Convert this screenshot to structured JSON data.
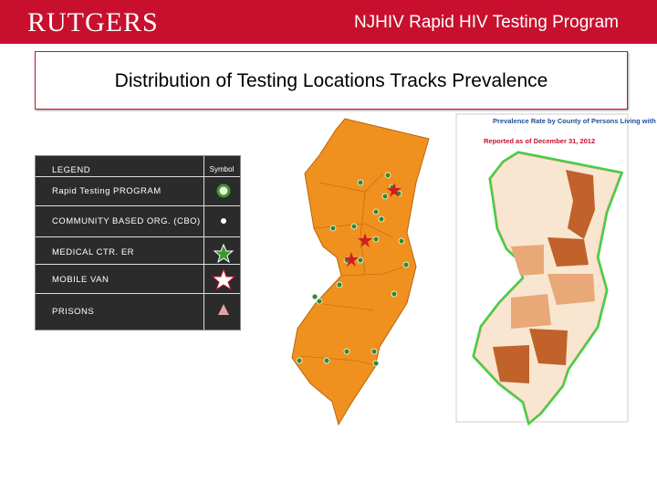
{
  "header": {
    "logo": "RUTGERS",
    "program": "NJHIV Rapid HIV Testing Program"
  },
  "title": "Distribution of Testing Locations Tracks Prevalence",
  "legend": {
    "heading": "LEGEND",
    "symbol_heading": "Symbol",
    "rows": [
      "Rapid Testing PROGRAM",
      "COMMUNITY BASED ORG. (CBO)",
      "MEDICAL CTR. ER",
      "MOBILE VAN",
      "PRISONS"
    ]
  },
  "prevalence_map": {
    "title": "Prevalence Rate by County of Persons Living with HIV/AIDS",
    "subtitle": "Reported as of December 31, 2012"
  }
}
